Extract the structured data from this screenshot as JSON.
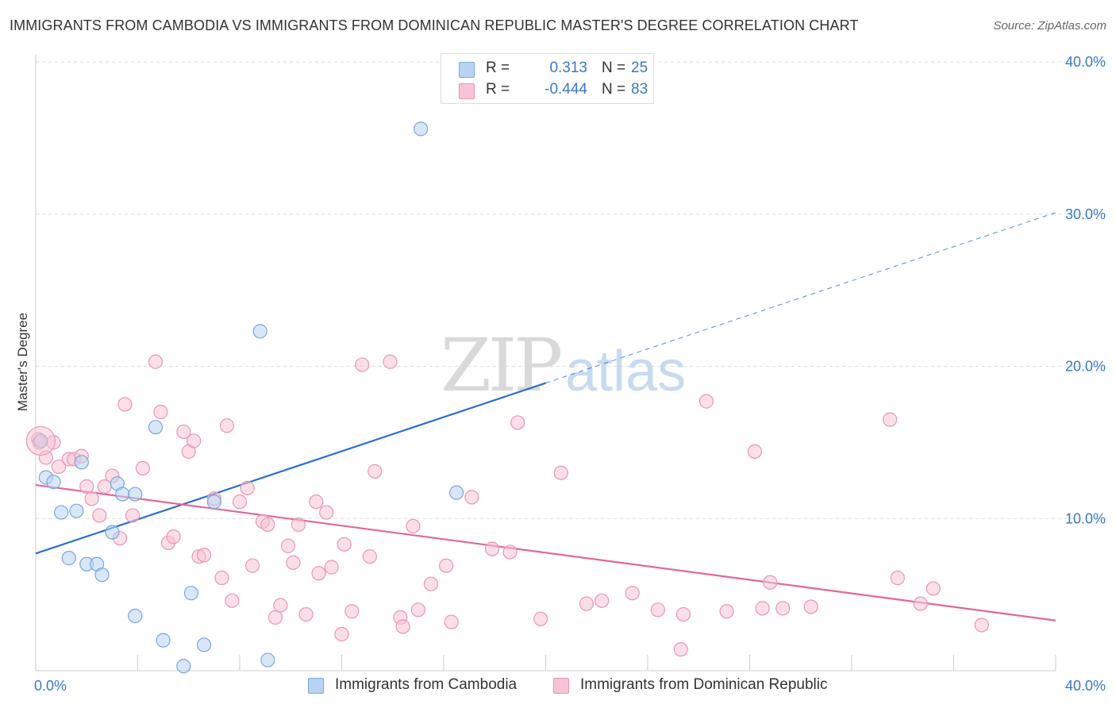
{
  "title": "IMMIGRANTS FROM CAMBODIA VS IMMIGRANTS FROM DOMINICAN REPUBLIC MASTER'S DEGREE CORRELATION CHART",
  "source": "Source: ZipAtlas.com",
  "watermark": {
    "zip": "ZIP",
    "atlas": "atlas"
  },
  "colors": {
    "blue_fill": "#b9d3f3",
    "blue_stroke": "#7aa6dc",
    "blue_line": "#2a6fd1",
    "pink_fill": "#f7c4d3",
    "pink_stroke": "#e995b2",
    "pink_line": "#e0679a",
    "accent_text": "#3a78c8"
  },
  "legend": {
    "rows": [
      {
        "r_label": "R =",
        "r_value": "0.313",
        "n_label": "N =",
        "n_value": "25",
        "color": "blue"
      },
      {
        "r_label": "R =",
        "r_value": "-0.444",
        "n_label": "N =",
        "n_value": "83",
        "color": "pink"
      }
    ],
    "placement": "top-center"
  },
  "bottom_legend": [
    {
      "label": "Immigrants from Cambodia",
      "color": "blue"
    },
    {
      "label": "Immigrants from Dominican Republic",
      "color": "pink"
    }
  ],
  "chart_data": {
    "type": "scatter",
    "ylabel": "Master's Degree",
    "xlim": [
      0,
      40
    ],
    "ylim": [
      0,
      40
    ],
    "y_ticks": [
      {
        "value": 10,
        "label": "10.0%"
      },
      {
        "value": 20,
        "label": "20.0%"
      },
      {
        "value": 30,
        "label": "30.0%"
      },
      {
        "value": 40,
        "label": "40.0%"
      }
    ],
    "x_tick_labels": [
      {
        "value": 0,
        "label": "0.0%"
      },
      {
        "value": 40,
        "label": "40.0%"
      }
    ],
    "grid": true,
    "series": [
      {
        "name": "Immigrants from Cambodia",
        "color": "blue",
        "points": [
          [
            0.2,
            15.1
          ],
          [
            0.4,
            12.7
          ],
          [
            0.7,
            12.4
          ],
          [
            1.0,
            10.4
          ],
          [
            1.3,
            7.4
          ],
          [
            1.6,
            10.5
          ],
          [
            1.8,
            13.7
          ],
          [
            2.0,
            7.0
          ],
          [
            2.4,
            7.0
          ],
          [
            2.6,
            6.3
          ],
          [
            3.0,
            9.1
          ],
          [
            3.2,
            12.3
          ],
          [
            3.4,
            11.6
          ],
          [
            3.9,
            11.6
          ],
          [
            3.9,
            3.6
          ],
          [
            5.0,
            2.0
          ],
          [
            4.7,
            16.0
          ],
          [
            5.8,
            0.3
          ],
          [
            6.1,
            5.1
          ],
          [
            6.6,
            1.7
          ],
          [
            7.0,
            11.1
          ],
          [
            8.8,
            22.3
          ],
          [
            9.1,
            0.7
          ],
          [
            15.1,
            35.6
          ],
          [
            16.5,
            11.7
          ]
        ],
        "trend": {
          "x": [
            0,
            40
          ],
          "y": [
            7.7,
            30.1
          ],
          "solid_until_x": 20
        }
      },
      {
        "name": "Immigrants from Dominican Republic",
        "color": "pink",
        "points": [
          [
            0.1,
            15.2
          ],
          [
            0.4,
            14.0
          ],
          [
            0.7,
            15.0
          ],
          [
            0.9,
            13.4
          ],
          [
            1.3,
            13.9
          ],
          [
            1.5,
            13.9
          ],
          [
            1.8,
            14.1
          ],
          [
            2.0,
            12.1
          ],
          [
            2.2,
            11.3
          ],
          [
            2.5,
            10.2
          ],
          [
            2.7,
            12.1
          ],
          [
            3.0,
            12.8
          ],
          [
            3.3,
            8.7
          ],
          [
            3.5,
            17.5
          ],
          [
            3.8,
            10.2
          ],
          [
            4.2,
            13.3
          ],
          [
            4.7,
            20.3
          ],
          [
            4.9,
            17.0
          ],
          [
            5.2,
            8.4
          ],
          [
            5.4,
            8.8
          ],
          [
            5.8,
            15.7
          ],
          [
            6.0,
            14.4
          ],
          [
            6.2,
            15.1
          ],
          [
            6.4,
            7.5
          ],
          [
            6.6,
            7.6
          ],
          [
            7.0,
            11.3
          ],
          [
            7.3,
            6.1
          ],
          [
            7.5,
            16.1
          ],
          [
            7.7,
            4.6
          ],
          [
            8.0,
            11.1
          ],
          [
            8.3,
            12.0
          ],
          [
            8.5,
            6.9
          ],
          [
            8.9,
            9.8
          ],
          [
            9.1,
            9.6
          ],
          [
            9.4,
            3.5
          ],
          [
            9.6,
            4.3
          ],
          [
            9.9,
            8.2
          ],
          [
            10.1,
            7.1
          ],
          [
            10.3,
            9.6
          ],
          [
            10.6,
            3.7
          ],
          [
            11.0,
            11.1
          ],
          [
            11.1,
            6.4
          ],
          [
            11.4,
            10.4
          ],
          [
            11.6,
            6.8
          ],
          [
            12.0,
            2.4
          ],
          [
            12.1,
            8.3
          ],
          [
            12.4,
            3.9
          ],
          [
            12.8,
            20.1
          ],
          [
            13.1,
            7.5
          ],
          [
            13.3,
            13.1
          ],
          [
            13.9,
            20.3
          ],
          [
            14.3,
            3.5
          ],
          [
            14.4,
            2.9
          ],
          [
            14.8,
            9.5
          ],
          [
            15.0,
            4.0
          ],
          [
            15.5,
            5.7
          ],
          [
            16.1,
            6.9
          ],
          [
            16.3,
            3.2
          ],
          [
            17.1,
            11.4
          ],
          [
            17.9,
            8.0
          ],
          [
            18.6,
            7.8
          ],
          [
            18.9,
            16.3
          ],
          [
            19.8,
            3.4
          ],
          [
            20.6,
            13.0
          ],
          [
            21.6,
            4.4
          ],
          [
            22.2,
            4.6
          ],
          [
            23.4,
            5.1
          ],
          [
            24.4,
            4.0
          ],
          [
            25.3,
            1.4
          ],
          [
            25.4,
            3.7
          ],
          [
            26.3,
            17.7
          ],
          [
            27.1,
            3.9
          ],
          [
            28.2,
            14.4
          ],
          [
            28.5,
            4.1
          ],
          [
            28.8,
            5.8
          ],
          [
            29.3,
            4.1
          ],
          [
            30.4,
            4.2
          ],
          [
            33.5,
            16.5
          ],
          [
            33.8,
            6.1
          ],
          [
            34.7,
            4.4
          ],
          [
            35.2,
            5.4
          ],
          [
            37.1,
            3.0
          ],
          [
            0.15,
            15.0
          ]
        ],
        "trend": {
          "x": [
            0,
            40
          ],
          "y": [
            12.2,
            3.3
          ]
        }
      }
    ]
  }
}
